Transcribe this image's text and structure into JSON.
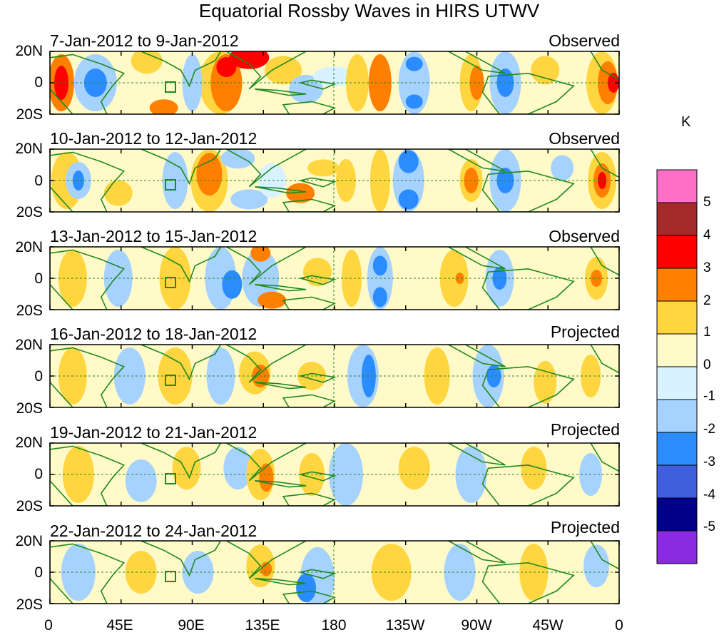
{
  "title": "Equatorial Rossby Waves in HIRS UTWV",
  "panels": [
    {
      "date": "7-Jan-2012 to 9-Jan-2012",
      "status": "Observed"
    },
    {
      "date": "10-Jan-2012 to 12-Jan-2012",
      "status": "Observed"
    },
    {
      "date": "13-Jan-2012 to 15-Jan-2012",
      "status": "Observed"
    },
    {
      "date": "16-Jan-2012 to 18-Jan-2012",
      "status": "Projected"
    },
    {
      "date": "19-Jan-2012 to 21-Jan-2012",
      "status": "Projected"
    },
    {
      "date": "22-Jan-2012 to 24-Jan-2012",
      "status": "Projected"
    }
  ],
  "y_labels": [
    "20N",
    "0",
    "20S"
  ],
  "x_labels": [
    "0",
    "45E",
    "90E",
    "135E",
    "180",
    "135W",
    "90W",
    "45W",
    "0"
  ],
  "colorbar": {
    "unit": "K",
    "levels": [
      "5",
      "4",
      "3",
      "2",
      "1",
      "0",
      "-1",
      "-2",
      "-3",
      "-4",
      "-5"
    ],
    "colors": [
      "#ff6ec7",
      "#a52a2a",
      "#ff0000",
      "#ff7f00",
      "#ffd640",
      "#fffac8",
      "#d8f2ff",
      "#a6d2ff",
      "#2b8cff",
      "#3f5fdf",
      "#00008b",
      "#8a2be2"
    ]
  },
  "land_color": "#1f8a1f"
}
